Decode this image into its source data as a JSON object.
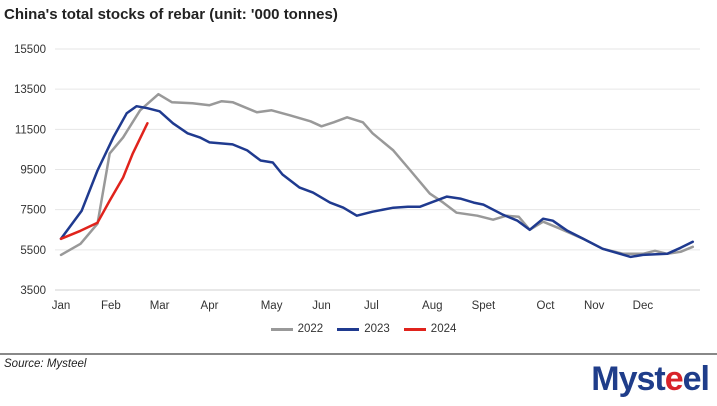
{
  "title": "China's total stocks of rebar (unit: '000 tonnes)",
  "source": "Source: Mysteel",
  "logo": {
    "text_a": "Myst",
    "text_b": "e",
    "text_c": "el"
  },
  "chart_data": {
    "type": "line",
    "title": "China's total stocks of rebar (unit: '000 tonnes)",
    "xlabel": "",
    "ylabel": "",
    "x_unit": "week of year",
    "xlim": [
      0,
      52
    ],
    "ylim": [
      3500,
      15500
    ],
    "yticks": [
      3500,
      5500,
      7500,
      9500,
      11500,
      13500,
      15500
    ],
    "ytick_labels": [
      "3500",
      "5500",
      "7500",
      "9500",
      "11500",
      "13500",
      "15500"
    ],
    "xticks": [
      0,
      4.1,
      8.1,
      12.2,
      17.3,
      21.4,
      25.5,
      30.5,
      34.7,
      39.8,
      43.8,
      47.8
    ],
    "xtick_labels": [
      "Jan",
      "Feb",
      "Mar",
      "Apr",
      "May",
      "Jun",
      "Jul",
      "Aug",
      "Spet",
      "Oct",
      "Nov",
      "Dec"
    ],
    "grid": true,
    "legend_position": "bottom",
    "series": [
      {
        "name": "2022",
        "color": "#999999",
        "x": [
          0,
          1.6,
          3.0,
          4.0,
          5.1,
          6.5,
          8.0,
          9.1,
          10.8,
          12.2,
          13.2,
          14.1,
          16.1,
          17.3,
          18.8,
          20.5,
          21.4,
          22.4,
          23.5,
          24.8,
          25.6,
          27.3,
          28.7,
          30.3,
          31.4,
          32.5,
          34.2,
          35.5,
          36.6,
          37.6,
          38.5,
          39.6,
          41.0,
          42.9,
          44.5,
          46.2,
          47.8,
          48.8,
          49.8,
          50.9,
          51.9
        ],
        "y": [
          5250,
          5800,
          6800,
          10300,
          11100,
          12450,
          13250,
          12850,
          12800,
          12700,
          12900,
          12850,
          12350,
          12450,
          12200,
          11900,
          11650,
          11850,
          12100,
          11850,
          11300,
          10450,
          9450,
          8300,
          7850,
          7350,
          7200,
          7000,
          7200,
          7150,
          6500,
          6900,
          6550,
          6050,
          5550,
          5300,
          5300,
          5450,
          5300,
          5400,
          5650
        ]
      },
      {
        "name": "2023",
        "color": "#1f3a8f",
        "x": [
          0,
          1.7,
          3.0,
          4.3,
          5.4,
          6.2,
          7.1,
          8.1,
          9.2,
          10.4,
          11.4,
          12.2,
          14.1,
          15.3,
          16.4,
          17.4,
          18.2,
          19.6,
          20.7,
          22.1,
          23.2,
          24.3,
          25.6,
          27.3,
          28.5,
          29.5,
          31.7,
          32.8,
          33.9,
          34.7,
          36.3,
          37.5,
          38.5,
          39.6,
          40.4,
          41.6,
          42.9,
          44.5,
          46.8,
          47.8,
          49.8,
          50.9,
          51.9
        ],
        "y": [
          6050,
          7450,
          9450,
          11100,
          12300,
          12650,
          12550,
          12400,
          11800,
          11300,
          11100,
          10850,
          10750,
          10450,
          9950,
          9850,
          9250,
          8600,
          8350,
          7850,
          7600,
          7200,
          7400,
          7600,
          7650,
          7650,
          8150,
          8050,
          7850,
          7750,
          7250,
          6950,
          6500,
          7050,
          6950,
          6450,
          6050,
          5550,
          5150,
          5250,
          5300,
          5600,
          5900
        ]
      },
      {
        "name": "2024",
        "color": "#e0231c",
        "x": [
          0,
          1.6,
          3.0,
          4.0,
          5.1,
          5.9,
          7.1
        ],
        "y": [
          6050,
          6450,
          6850,
          7950,
          9100,
          10300,
          11800
        ]
      }
    ]
  }
}
